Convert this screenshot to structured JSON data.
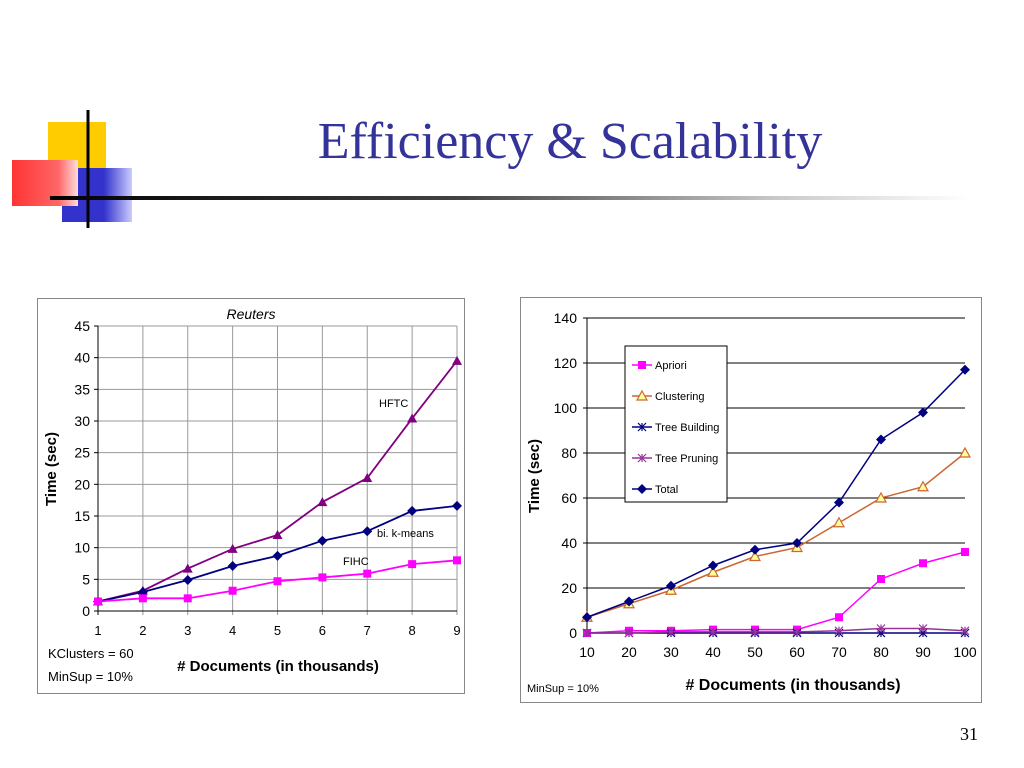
{
  "slide": {
    "title": "Efficiency & Scalability",
    "page_number": "31",
    "colors": {
      "title": "#333399",
      "logo_yellow": "#ffcc00",
      "logo_red": "#ff3333",
      "logo_blue": "#3333cc"
    }
  },
  "chart_data": [
    {
      "type": "line",
      "title": "Reuters",
      "xlabel": "# Documents (in thousands)",
      "ylabel": "Time (sec)",
      "x": [
        1,
        2,
        3,
        4,
        5,
        6,
        7,
        8,
        9
      ],
      "xlim": [
        1,
        9
      ],
      "ylim": [
        0,
        45
      ],
      "yticks": [
        0,
        5,
        10,
        15,
        20,
        25,
        30,
        35,
        40,
        45
      ],
      "grid": true,
      "notes": [
        "KClusters = 60",
        "MinSup = 10%"
      ],
      "series": [
        {
          "name": "HFTC",
          "color": "#800080",
          "marker": "triangle",
          "values": [
            1.5,
            3.2,
            6.7,
            9.8,
            12.0,
            17.2,
            21.0,
            30.4,
            39.5
          ]
        },
        {
          "name": "bi. k-means",
          "color": "#000080",
          "marker": "diamond",
          "values": [
            1.5,
            3.0,
            4.9,
            7.1,
            8.7,
            11.1,
            12.6,
            15.8,
            16.6
          ]
        },
        {
          "name": "FIHC",
          "color": "#ff00ff",
          "marker": "square",
          "values": [
            1.5,
            2.0,
            2.0,
            3.2,
            4.7,
            5.3,
            5.9,
            7.4,
            8.0
          ]
        }
      ]
    },
    {
      "type": "line",
      "title": "",
      "xlabel": "# Documents (in thousands)",
      "ylabel": "Time (sec)",
      "x": [
        10,
        20,
        30,
        40,
        50,
        60,
        70,
        80,
        90,
        100
      ],
      "xlim": [
        10,
        100
      ],
      "ylim": [
        0,
        140
      ],
      "yticks": [
        0,
        20,
        40,
        60,
        80,
        100,
        120,
        140
      ],
      "grid": true,
      "legend_position": "top-left",
      "notes": [
        "MinSup = 10%"
      ],
      "series": [
        {
          "name": "Apriori",
          "color": "#ff00ff",
          "marker": "square",
          "values": [
            0,
            1,
            1,
            1.5,
            1.5,
            1.5,
            7,
            24,
            31,
            36
          ]
        },
        {
          "name": "Clustering",
          "color": "#cc6633",
          "marker": "triangle",
          "values": [
            7,
            13,
            19,
            27,
            34,
            38,
            49,
            60,
            65,
            80
          ]
        },
        {
          "name": "Tree Building",
          "color": "#000080",
          "marker": "star",
          "values": [
            0,
            0,
            0,
            0,
            0,
            0,
            0,
            0,
            0,
            0
          ]
        },
        {
          "name": "Tree Pruning",
          "color": "#993399",
          "marker": "star",
          "values": [
            0,
            0,
            0.5,
            0.5,
            0.5,
            0.5,
            1,
            2,
            2,
            1
          ]
        },
        {
          "name": "Total",
          "color": "#000080",
          "marker": "diamond",
          "values": [
            7,
            14,
            21,
            30,
            37,
            40,
            58,
            86,
            98,
            117
          ]
        }
      ]
    }
  ]
}
